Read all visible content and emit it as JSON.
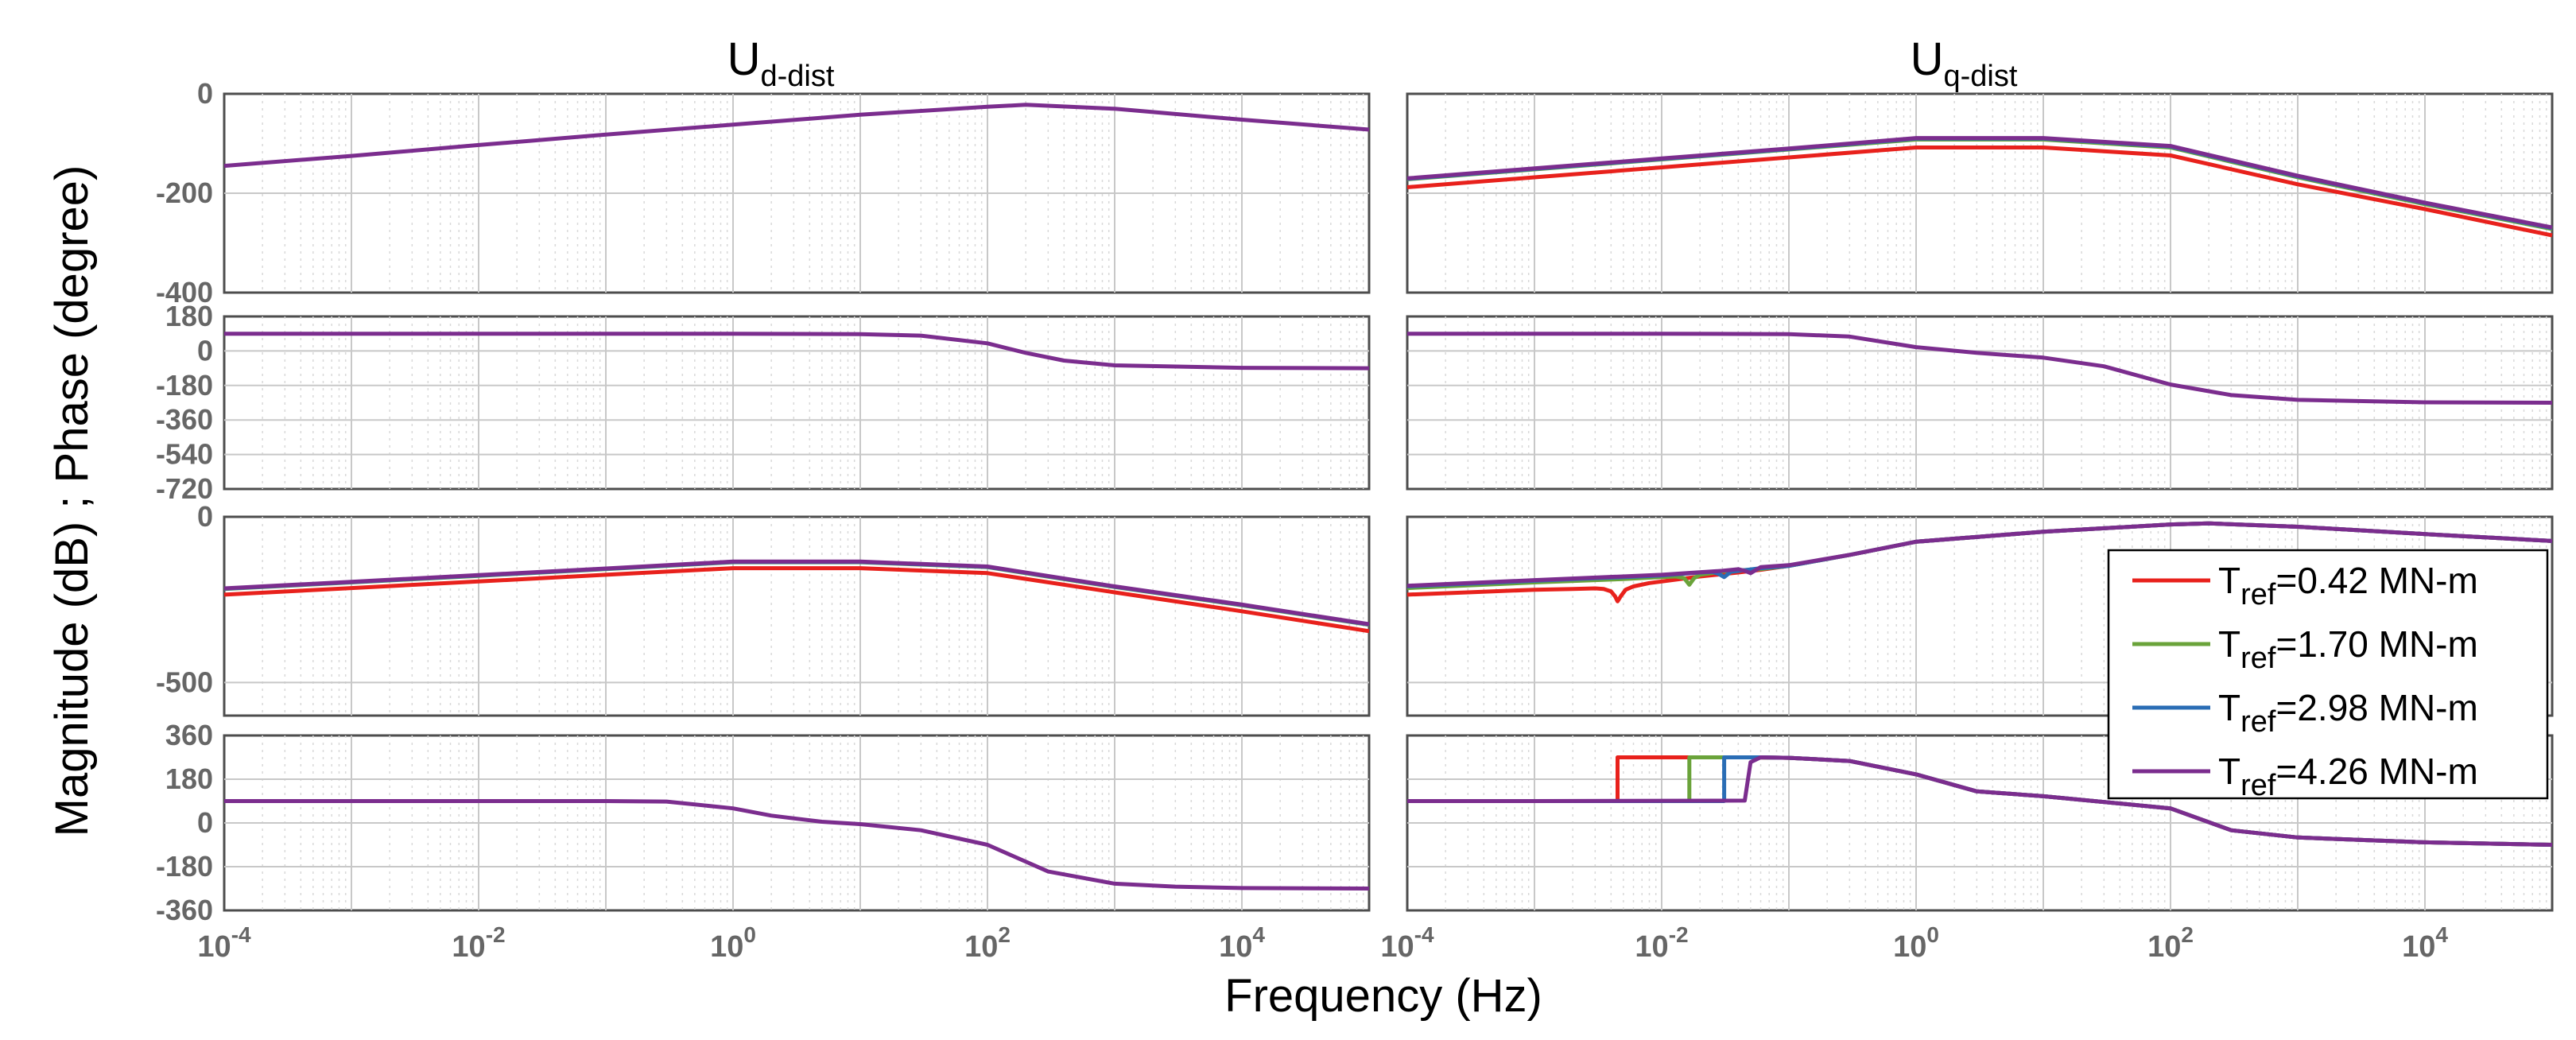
{
  "chart_data": [
    {
      "type": "line",
      "panel": "Ud-dist magnitude",
      "title": {
        "main": "U",
        "sub": "d-dist"
      },
      "x_scale": "log",
      "xlim": [
        0.0001,
        100000
      ],
      "ylim": [
        -400,
        0
      ],
      "yticks": [
        "0",
        "-200",
        "-400"
      ],
      "series": [
        {
          "color": "#7b2d8e",
          "x": [
            0.0001,
            0.001,
            0.01,
            0.1,
            1,
            10,
            100,
            200,
            1000,
            10000,
            100000
          ],
          "y": [
            -145,
            -125,
            -103,
            -82,
            -62,
            -42,
            -26,
            -22,
            -30,
            -52,
            -72
          ]
        }
      ]
    },
    {
      "type": "line",
      "panel": "Uq-dist magnitude",
      "title": {
        "main": "U",
        "sub": "q-dist"
      },
      "x_scale": "log",
      "xlim": [
        0.0001,
        100000
      ],
      "ylim": [
        -400,
        0
      ],
      "yticks": [
        "0",
        "-200",
        "-400"
      ],
      "series": [
        {
          "color": "#e8211c",
          "x": [
            0.0001,
            0.001,
            0.01,
            0.1,
            1,
            10,
            100,
            1000,
            10000,
            100000
          ],
          "y": [
            -188,
            -168,
            -148,
            -128,
            -108,
            -108,
            -124,
            -182,
            -232,
            -285
          ]
        },
        {
          "color": "#6aa33a",
          "x": [
            0.0001,
            0.001,
            0.01,
            0.1,
            1,
            10,
            100,
            1000,
            10000,
            100000
          ],
          "y": [
            -172,
            -152,
            -132,
            -112,
            -92,
            -92,
            -108,
            -168,
            -222,
            -272
          ]
        },
        {
          "color": "#2a6db5",
          "x": [
            0.0001,
            0.001,
            0.01,
            0.1,
            1,
            10,
            100,
            1000,
            10000,
            100000
          ],
          "y": [
            -171,
            -151,
            -131,
            -111,
            -90,
            -90,
            -106,
            -166,
            -220,
            -270
          ]
        },
        {
          "color": "#7b2d8e",
          "x": [
            0.0001,
            0.001,
            0.01,
            0.1,
            1,
            10,
            100,
            1000,
            10000,
            100000
          ],
          "y": [
            -170,
            -150,
            -130,
            -110,
            -89,
            -89,
            -105,
            -165,
            -219,
            -269
          ]
        }
      ]
    },
    {
      "type": "line",
      "panel": "Ud-dist phase",
      "x_scale": "log",
      "xlim": [
        0.0001,
        100000
      ],
      "ylim": [
        -720,
        180
      ],
      "yticks": [
        "180",
        "0",
        "-180",
        "-360",
        "-540",
        "-720"
      ],
      "series": [
        {
          "color": "#7b2d8e",
          "x": [
            0.0001,
            0.001,
            0.01,
            0.1,
            1,
            10,
            30,
            100,
            200,
            400,
            1000,
            10000,
            100000
          ],
          "y": [
            90,
            90,
            90,
            90,
            90,
            88,
            80,
            40,
            -10,
            -50,
            -75,
            -88,
            -90
          ]
        }
      ]
    },
    {
      "type": "line",
      "panel": "Uq-dist phase",
      "x_scale": "log",
      "xlim": [
        0.0001,
        100000
      ],
      "ylim": [
        -720,
        180
      ],
      "yticks": [
        "180",
        "0",
        "-180",
        "-360",
        "-540",
        "-720"
      ],
      "series": [
        {
          "color": "#7b2d8e",
          "x": [
            0.0001,
            0.001,
            0.01,
            0.1,
            0.3,
            1,
            3,
            10,
            30,
            100,
            300,
            1000,
            10000,
            100000
          ],
          "y": [
            90,
            90,
            90,
            88,
            75,
            20,
            -10,
            -35,
            -80,
            -175,
            -230,
            -255,
            -268,
            -270
          ]
        }
      ]
    },
    {
      "type": "line",
      "panel": "Ud-dist magnitude (2)",
      "x_scale": "log",
      "xlim": [
        0.0001,
        100000
      ],
      "ylim": [
        -600,
        0
      ],
      "yticks": [
        "0",
        "-500"
      ],
      "series": [
        {
          "color": "#e8211c",
          "x": [
            0.0001,
            0.001,
            0.01,
            0.1,
            1,
            10,
            100,
            1000,
            10000,
            100000
          ],
          "y": [
            -235,
            -215,
            -195,
            -175,
            -155,
            -155,
            -170,
            -228,
            -285,
            -345
          ]
        },
        {
          "color": "#6aa33a",
          "x": [
            0.0001,
            0.001,
            0.01,
            0.1,
            1,
            10,
            100,
            1000,
            10000,
            100000
          ],
          "y": [
            -218,
            -198,
            -178,
            -158,
            -137,
            -137,
            -152,
            -212,
            -267,
            -326
          ]
        },
        {
          "color": "#2a6db5",
          "x": [
            0.0001,
            0.001,
            0.01,
            0.1,
            1,
            10,
            100,
            1000,
            10000,
            100000
          ],
          "y": [
            -217,
            -197,
            -177,
            -157,
            -136,
            -136,
            -151,
            -211,
            -266,
            -325
          ]
        },
        {
          "color": "#7b2d8e",
          "x": [
            0.0001,
            0.001,
            0.01,
            0.1,
            1,
            10,
            100,
            1000,
            10000,
            100000
          ],
          "y": [
            -216,
            -196,
            -176,
            -156,
            -135,
            -135,
            -150,
            -210,
            -265,
            -324
          ]
        }
      ]
    },
    {
      "type": "line",
      "panel": "Uq-dist magnitude (2)",
      "x_scale": "log",
      "xlim": [
        0.0001,
        100000
      ],
      "ylim": [
        -600,
        0
      ],
      "yticks": [
        "0",
        "-500"
      ],
      "series": [
        {
          "color": "#e8211c",
          "x": [
            0.0001,
            0.0003,
            0.001,
            0.002,
            0.003,
            0.0035,
            0.004,
            0.0043,
            0.0045,
            0.0048,
            0.0052,
            0.006,
            0.008,
            0.01,
            0.02,
            0.04,
            0.06,
            0.1,
            0.3,
            1,
            10,
            100,
            200,
            1000,
            10000,
            100000
          ],
          "y": [
            -235,
            -228,
            -220,
            -218,
            -216,
            -218,
            -225,
            -240,
            -255,
            -238,
            -220,
            -210,
            -200,
            -195,
            -180,
            -168,
            -160,
            -148,
            -115,
            -75,
            -45,
            -23,
            -20,
            -30,
            -52,
            -73
          ]
        },
        {
          "color": "#6aa33a",
          "x": [
            0.0001,
            0.001,
            0.005,
            0.01,
            0.013,
            0.015,
            0.0165,
            0.018,
            0.02,
            0.03,
            0.06,
            0.1,
            0.3,
            1,
            10,
            100,
            200,
            1000,
            10000,
            100000
          ],
          "y": [
            -215,
            -198,
            -188,
            -182,
            -180,
            -185,
            -205,
            -185,
            -175,
            -165,
            -158,
            -148,
            -115,
            -75,
            -45,
            -23,
            -20,
            -30,
            -52,
            -73
          ]
        },
        {
          "color": "#2a6db5",
          "x": [
            0.0001,
            0.001,
            0.01,
            0.02,
            0.025,
            0.028,
            0.031,
            0.035,
            0.06,
            0.1,
            0.3,
            1,
            10,
            100,
            200,
            1000,
            10000,
            100000
          ],
          "y": [
            -210,
            -193,
            -177,
            -168,
            -166,
            -172,
            -182,
            -166,
            -155,
            -148,
            -115,
            -75,
            -45,
            -23,
            -20,
            -30,
            -52,
            -73
          ]
        },
        {
          "color": "#7b2d8e",
          "x": [
            0.0001,
            0.001,
            0.01,
            0.03,
            0.04,
            0.045,
            0.05,
            0.06,
            0.1,
            0.3,
            1,
            10,
            100,
            200,
            1000,
            10000,
            100000
          ],
          "y": [
            -208,
            -191,
            -175,
            -163,
            -158,
            -163,
            -170,
            -152,
            -146,
            -115,
            -75,
            -45,
            -23,
            -20,
            -30,
            -52,
            -73
          ]
        }
      ]
    },
    {
      "type": "line",
      "panel": "Ud-dist phase (2)",
      "x_scale": "log",
      "xlim": [
        0.0001,
        100000
      ],
      "ylim": [
        -360,
        360
      ],
      "yticks": [
        "360",
        "180",
        "0",
        "-180",
        "-360"
      ],
      "series": [
        {
          "color": "#7b2d8e",
          "x": [
            0.0001,
            0.001,
            0.01,
            0.1,
            0.3,
            1,
            2,
            5,
            10,
            30,
            100,
            300,
            1000,
            3000,
            10000,
            100000
          ],
          "y": [
            90,
            90,
            90,
            90,
            88,
            60,
            30,
            5,
            -5,
            -30,
            -90,
            -200,
            -250,
            -262,
            -268,
            -270
          ]
        }
      ]
    },
    {
      "type": "line",
      "panel": "Uq-dist phase (2)",
      "x_scale": "log",
      "xlim": [
        0.0001,
        100000
      ],
      "ylim": [
        -360,
        360
      ],
      "yticks": [
        "360",
        "180",
        "0",
        "-180",
        "-360"
      ],
      "series": [
        {
          "color": "#e8211c",
          "x": [
            0.0001,
            0.001,
            0.0045,
            0.0045,
            0.01,
            0.05,
            0.1,
            0.3,
            1,
            3,
            10,
            100,
            300,
            1000,
            10000,
            100000
          ],
          "y": [
            90,
            90,
            90,
            270,
            270,
            270,
            268,
            255,
            200,
            130,
            110,
            60,
            -30,
            -60,
            -80,
            -90
          ]
        },
        {
          "color": "#6aa33a",
          "x": [
            0.0001,
            0.001,
            0.0165,
            0.0165,
            0.05,
            0.1,
            0.3,
            1,
            3,
            10,
            100,
            300,
            1000,
            10000,
            100000
          ],
          "y": [
            90,
            90,
            90,
            270,
            270,
            268,
            255,
            200,
            130,
            110,
            60,
            -30,
            -60,
            -80,
            -90
          ]
        },
        {
          "color": "#2a6db5",
          "x": [
            0.0001,
            0.001,
            0.031,
            0.031,
            0.06,
            0.1,
            0.3,
            1,
            3,
            10,
            100,
            300,
            1000,
            10000,
            100000
          ],
          "y": [
            90,
            90,
            90,
            270,
            270,
            268,
            255,
            200,
            130,
            110,
            60,
            -30,
            -60,
            -80,
            -90
          ]
        },
        {
          "color": "#7b2d8e",
          "x": [
            0.0001,
            0.001,
            0.045,
            0.05,
            0.06,
            0.1,
            0.3,
            1,
            3,
            10,
            100,
            300,
            1000,
            10000,
            100000
          ],
          "y": [
            90,
            90,
            92,
            250,
            270,
            268,
            255,
            200,
            130,
            110,
            60,
            -30,
            -60,
            -80,
            -90
          ]
        }
      ]
    }
  ],
  "xticks": [
    {
      "base": "10",
      "exp": "-4",
      "value": 0.0001
    },
    {
      "base": "10",
      "exp": "-2",
      "value": 0.01
    },
    {
      "base": "10",
      "exp": "0",
      "value": 1
    },
    {
      "base": "10",
      "exp": "2",
      "value": 100
    },
    {
      "base": "10",
      "exp": "4",
      "value": 10000
    }
  ],
  "xlabel": "Frequency (Hz)",
  "ylabel": "Magnitude (dB) ; Phase (degree)",
  "legend": {
    "placement": "right, over the lower Uq-dist panels",
    "entries": [
      {
        "main": "T",
        "sub": "ref",
        "rest": "=0.42 MN-m",
        "color": "#e8211c"
      },
      {
        "main": "T",
        "sub": "ref",
        "rest": "=1.70 MN-m",
        "color": "#6aa33a"
      },
      {
        "main": "T",
        "sub": "ref",
        "rest": "=2.98 MN-m",
        "color": "#2a6db5"
      },
      {
        "main": "T",
        "sub": "ref",
        "rest": "=4.26 MN-m",
        "color": "#7b2d8e"
      }
    ]
  }
}
